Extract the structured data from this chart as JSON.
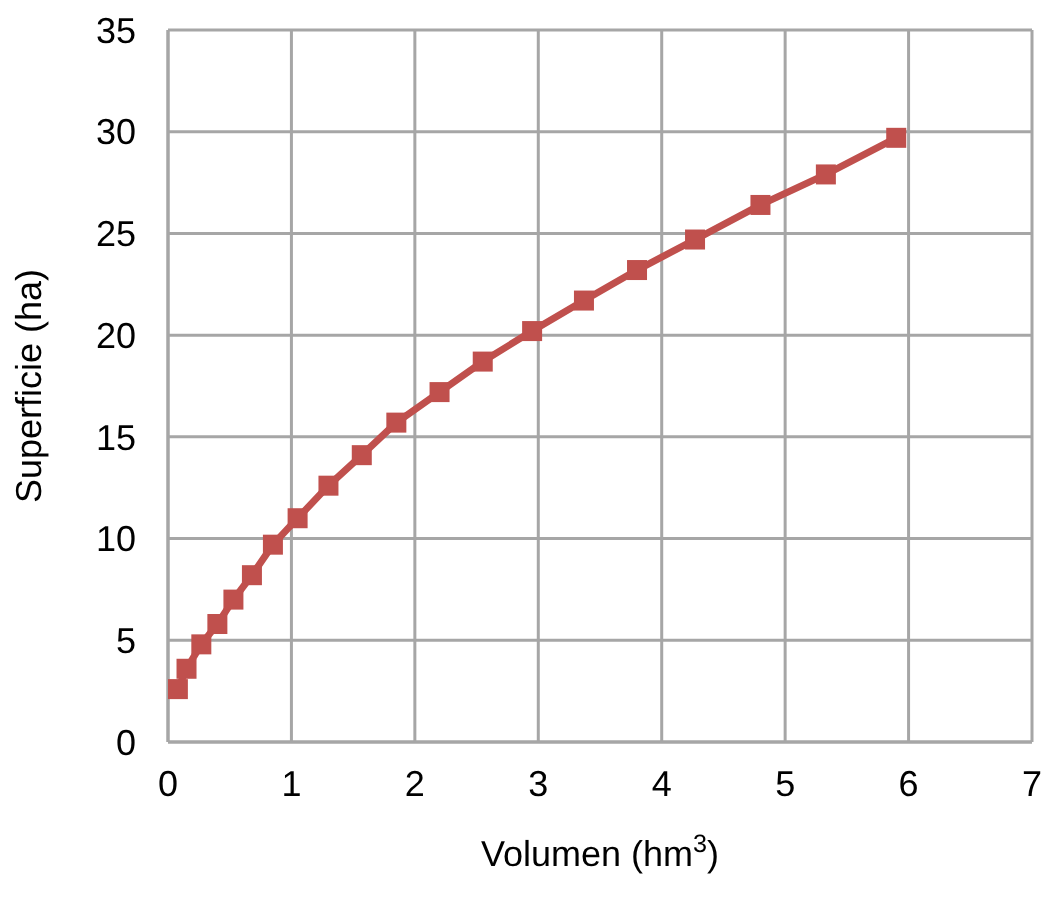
{
  "chart_data": {
    "type": "line",
    "xlabel": "Volumen (hm$^{3}$)",
    "ylabel": "Superficie (ha)",
    "marker": "square",
    "grid": true,
    "line_style": "solid",
    "xlim": [
      0,
      7
    ],
    "xticks": [
      0,
      1,
      2,
      3,
      4,
      5,
      6,
      7
    ],
    "ylim": [
      0,
      35
    ],
    "yticks": [
      0,
      5,
      10,
      15,
      20,
      25,
      30,
      35
    ],
    "series": [
      {
        "color": "#c0504d",
        "x": [
          0.08,
          0.15,
          0.27,
          0.4,
          0.53,
          0.68,
          0.85,
          1.05,
          1.3,
          1.57,
          1.85,
          2.2,
          2.55,
          2.95,
          3.37,
          3.8,
          4.27,
          4.8,
          5.33,
          5.9
        ],
        "values": [
          2.6,
          3.6,
          4.8,
          5.8,
          7.0,
          8.2,
          9.7,
          11.0,
          12.6,
          14.1,
          15.7,
          17.2,
          18.7,
          20.2,
          21.7,
          23.2,
          24.7,
          26.4,
          27.9,
          29.7
        ]
      }
    ]
  }
}
